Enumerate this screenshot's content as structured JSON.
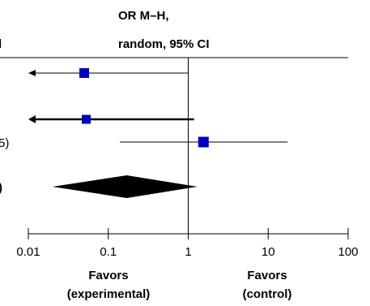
{
  "header": {
    "line1": "OR M–H,",
    "line2": "random, 95% CI",
    "left_cut": "l"
  },
  "cut_labels": {
    "row3": "5)",
    "summary": ")"
  },
  "chart_data": {
    "type": "forest",
    "x_scale": "log",
    "xlim": [
      0.01,
      100
    ],
    "ticks": [
      0.01,
      0.1,
      1,
      10,
      100
    ],
    "tick_labels": [
      "0.01",
      "0.1",
      "1",
      "10",
      "100"
    ],
    "reference_line": 1,
    "studies": [
      {
        "or": 0.05,
        "ci_low": 0.01,
        "ci_high": 1.0,
        "arrow_left": true,
        "bold": false
      },
      {
        "or": 0.053,
        "ci_low": 0.01,
        "ci_high": 1.18,
        "arrow_left": true,
        "bold": true
      },
      {
        "or": 1.55,
        "ci_low": 0.14,
        "ci_high": 17.5,
        "arrow_left": false,
        "bold": false
      }
    ],
    "summary": {
      "or": 0.17,
      "ci_low": 0.02,
      "ci_high": 1.3
    },
    "favors_left": [
      "Favors",
      "(experimental)"
    ],
    "favors_right": [
      "Favors",
      "(control)"
    ],
    "colors": {
      "marker": "#0000c0",
      "line": "#000000",
      "diamond": "#000000"
    }
  }
}
